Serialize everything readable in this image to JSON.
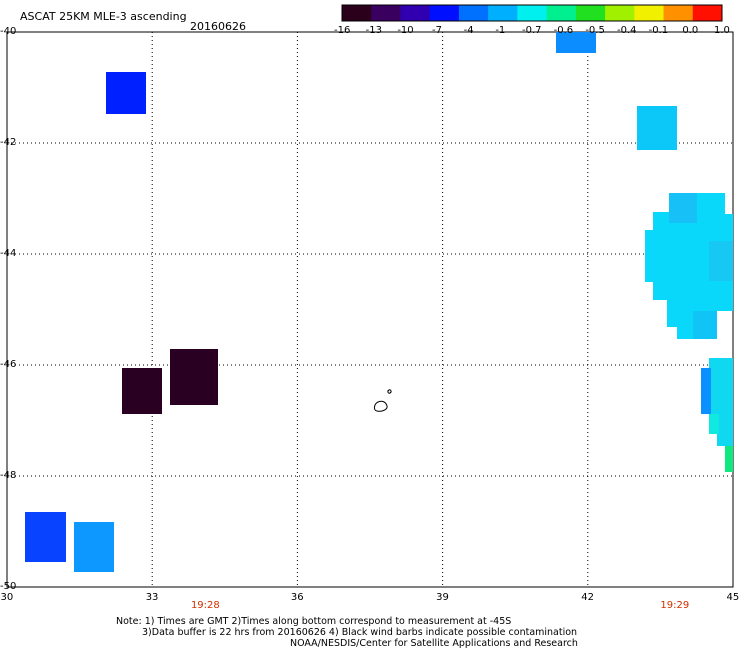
{
  "header": {
    "title": "ASCAT 25KM MLE-3 ascending",
    "date": "20160626"
  },
  "colorbar": {
    "labels": [
      "-16",
      "-13",
      "-10",
      "-7",
      "-4",
      "-1",
      "-0.7",
      "-0.6",
      "-0.5",
      "-0.4",
      "-0.1",
      "0.0",
      "1.0"
    ],
    "colors": [
      "#2a001a",
      "#3a0060",
      "#3000b0",
      "#0010ff",
      "#0070ff",
      "#00b0ff",
      "#00f0f0",
      "#00f090",
      "#20e020",
      "#a0f000",
      "#f0f000",
      "#ff9000",
      "#ff1000"
    ]
  },
  "map": {
    "lon_range": [
      30,
      45
    ],
    "lat_range": [
      -40,
      -50
    ],
    "x_ticks": [
      "30",
      "33",
      "36",
      "39",
      "42",
      "45"
    ],
    "y_ticks": [
      "-40",
      "-42",
      "-44",
      "-46",
      "-48",
      "-50"
    ],
    "times": [
      {
        "label": "19:28",
        "lon": 34.1
      },
      {
        "label": "19:29",
        "lon": 43.8
      }
    ]
  },
  "footer": {
    "line1": "Note: 1) Times are GMT 2)Times along bottom correspond to measurement at -45S",
    "line2": "3)Data buffer is 22 hrs from 20160626 4) Black wind barbs indicate possible contamination",
    "line3": "NOAA/NESDIS/Center for Satellite Applications and Research"
  }
}
